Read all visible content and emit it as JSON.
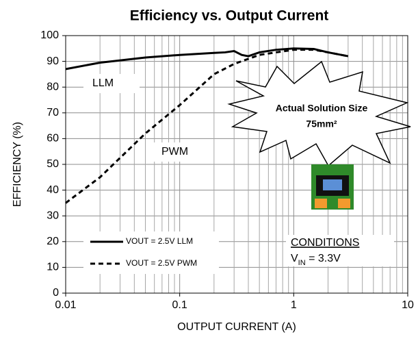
{
  "chart_data": {
    "type": "line",
    "title": "Efficiency vs. Output Current",
    "x_label": "OUTPUT CURRENT (A)",
    "y_label": "EFFICIENCY (%)",
    "xscale": "log",
    "xlim": [
      0.01,
      10
    ],
    "xticks": [
      0.01,
      0.1,
      1,
      10
    ],
    "xminor_ticks": [
      0.02,
      0.03,
      0.04,
      0.05,
      0.06,
      0.07,
      0.08,
      0.09,
      0.2,
      0.3,
      0.4,
      0.5,
      0.6,
      0.7,
      0.8,
      0.9,
      2,
      3,
      4,
      5,
      6,
      7,
      8,
      9
    ],
    "ylim": [
      0,
      100
    ],
    "yticks": [
      0,
      10,
      20,
      30,
      40,
      50,
      60,
      70,
      80,
      90,
      100
    ],
    "grid": true,
    "legend": "lower left",
    "series": [
      {
        "name": "VOUT = 2.5V LLM",
        "color": "#000000",
        "line_style": "solid",
        "x": [
          0.01,
          0.02,
          0.05,
          0.1,
          0.2,
          0.25,
          0.3,
          0.35,
          0.4,
          0.5,
          0.7,
          1,
          1.5,
          2,
          3
        ],
        "values": [
          87,
          89.5,
          91.5,
          92.5,
          93.3,
          93.5,
          94,
          92.5,
          92,
          93.5,
          94.5,
          95,
          94.8,
          93.5,
          92
        ]
      },
      {
        "name": "VOUT = 2.5V PWM",
        "color": "#000000",
        "line_style": "dashed",
        "x": [
          0.01,
          0.02,
          0.05,
          0.1,
          0.2,
          0.3,
          0.5,
          0.7,
          1,
          1.5,
          2,
          3
        ],
        "values": [
          35,
          45,
          62,
          73,
          85,
          89,
          92.5,
          93.5,
          94.5,
          94.5,
          93.5,
          92
        ]
      }
    ],
    "annotations": [
      {
        "text": "LLM"
      },
      {
        "text": "PWM"
      },
      {
        "text": "Actual Solution Size"
      },
      {
        "text": "75mm²"
      },
      {
        "text": "CONDITIONS"
      },
      {
        "text": "V",
        "subscript": "IN",
        "suffix": " = 3.3V"
      }
    ]
  }
}
